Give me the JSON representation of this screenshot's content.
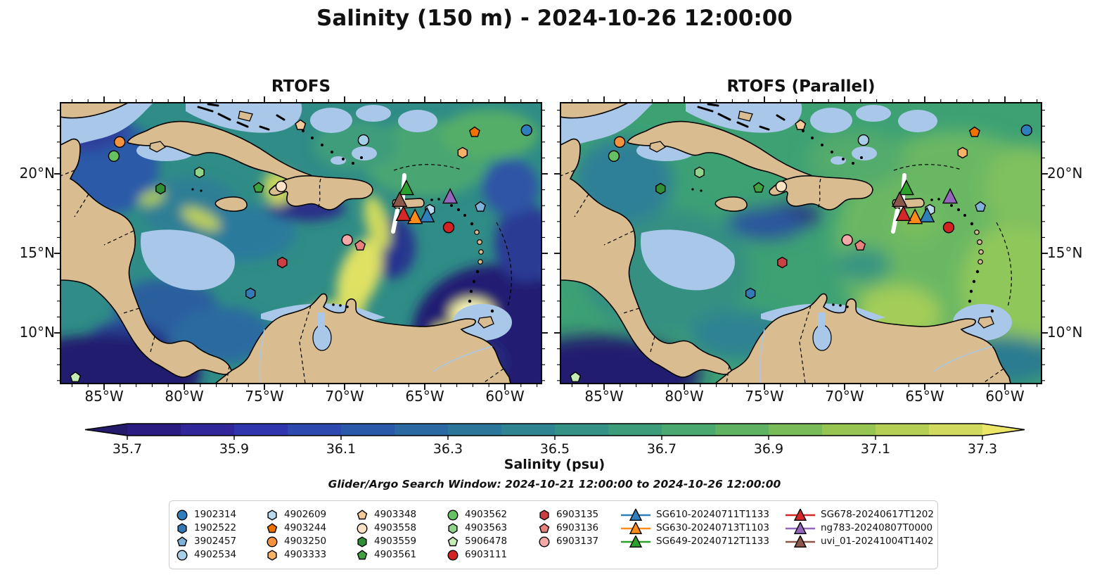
{
  "title": "Salinity (150 m) - 2024-10-26 12:00:00",
  "panels": [
    {
      "title": "RTOFS"
    },
    {
      "title": "RTOFS (Parallel)"
    }
  ],
  "axes": {
    "lon_labels": [
      "85°W",
      "80°W",
      "75°W",
      "70°W",
      "65°W",
      "60°W"
    ],
    "lat_labels": [
      "20°N",
      "15°N",
      "10°N"
    ]
  },
  "colorbar": {
    "label": "Salinity (psu)",
    "ticks": [
      "35.7",
      "35.9",
      "36.1",
      "36.3",
      "36.5",
      "36.7",
      "36.9",
      "37.1",
      "37.3"
    ],
    "under_color": "#241a6b",
    "over_color": "#ece668",
    "segment_colors": [
      "#2a1c80",
      "#30269a",
      "#2f36ad",
      "#2d48ae",
      "#2b59a9",
      "#2a69a2",
      "#2b779a",
      "#2e8491",
      "#349186",
      "#3d9d7a",
      "#4ba86e",
      "#5fb262",
      "#79bb58",
      "#97c551",
      "#b5cf55",
      "#d2d95f"
    ]
  },
  "annotations": {
    "search_window": "Glider/Argo Search Window: 2024-10-21 12:00:00 to 2024-10-26 12:00:00"
  },
  "chart_data": {
    "type": "heatmap",
    "subtype": "filled-contour salinity field comparison, two geographic map panels (Caribbean Sea)",
    "variable": "Salinity (psu)",
    "depth": "150 m",
    "valid_time": "2024-10-26 12:00:00",
    "panel_titles": [
      "RTOFS",
      "RTOFS (Parallel)"
    ],
    "lon_ticks": [
      "85°W",
      "80°W",
      "75°W",
      "70°W",
      "65°W",
      "60°W"
    ],
    "lat_ticks": [
      "20°N",
      "15°N",
      "10°N"
    ],
    "color_levels": {
      "min": 35.7,
      "max": 37.3,
      "step": 0.1,
      "extend": "both"
    },
    "markers": [
      {
        "id": "1902314",
        "kind": "argo",
        "shape": "circle",
        "color": "#2e7ebc",
        "lon_approx": "58.6W",
        "lat_approx": "22.7N",
        "fx": 0.969,
        "fy": 0.098
      },
      {
        "id": "1902522",
        "kind": "argo",
        "shape": "hexagon",
        "color": "#3579b5",
        "lon_approx": "75.9W",
        "lat_approx": "12.5N",
        "fx": 0.395,
        "fy": 0.679
      },
      {
        "id": "3902457",
        "kind": "argo",
        "shape": "pentagon",
        "color": "#7fb2d8",
        "lon_approx": "61.5W",
        "lat_approx": "17.9N",
        "fx": 0.873,
        "fy": 0.371
      },
      {
        "id": "4902534",
        "kind": "argo",
        "shape": "circle",
        "color": "#a8cfe8",
        "lon_approx": "68.8W",
        "lat_approx": "22.1N",
        "fx": 0.63,
        "fy": 0.133
      },
      {
        "id": "4902609",
        "kind": "argo",
        "shape": "hexagon",
        "color": "#b8d9ee",
        "lon_approx": "64.7W",
        "lat_approx": "17.7N",
        "fx": 0.768,
        "fy": 0.381
      },
      {
        "id": "4903244",
        "kind": "argo",
        "shape": "pentagon",
        "color": "#ef7100",
        "lon_approx": "61.9W",
        "lat_approx": "22.6N",
        "fx": 0.861,
        "fy": 0.105
      },
      {
        "id": "4903250",
        "kind": "argo",
        "shape": "circle",
        "color": "#f5923e",
        "lon_approx": "84.0W",
        "lat_approx": "22.0N",
        "fx": 0.123,
        "fy": 0.14
      },
      {
        "id": "4903333",
        "kind": "argo",
        "shape": "hexagon",
        "color": "#f8b267",
        "lon_approx": "62.6W",
        "lat_approx": "21.3N",
        "fx": 0.836,
        "fy": 0.178
      },
      {
        "id": "4903348",
        "kind": "argo",
        "shape": "pentagon",
        "color": "#f6c998",
        "lon_approx": "72.8W",
        "lat_approx": "23.1N",
        "fx": 0.499,
        "fy": 0.08
      },
      {
        "id": "4903558",
        "kind": "argo",
        "shape": "circle",
        "color": "#fce3c4",
        "lon_approx": "74.0W",
        "lat_approx": "19.2N",
        "fx": 0.459,
        "fy": 0.298
      },
      {
        "id": "4903559",
        "kind": "argo",
        "shape": "hexagon",
        "color": "#2f8f35",
        "lon_approx": "81.5W",
        "lat_approx": "19.1N",
        "fx": 0.208,
        "fy": 0.306
      },
      {
        "id": "4903561",
        "kind": "argo",
        "shape": "pentagon",
        "color": "#3fa23f",
        "lon_approx": "75.4W",
        "lat_approx": "19.1N",
        "fx": 0.412,
        "fy": 0.303
      },
      {
        "id": "4903562",
        "kind": "argo",
        "shape": "circle",
        "color": "#66c163",
        "lon_approx": "84.4W",
        "lat_approx": "21.1N",
        "fx": 0.111,
        "fy": 0.19
      },
      {
        "id": "4903563",
        "kind": "argo",
        "shape": "hexagon",
        "color": "#90d48a",
        "lon_approx": "79.0W",
        "lat_approx": "20.1N",
        "fx": 0.289,
        "fy": 0.248
      },
      {
        "id": "5906478",
        "kind": "argo",
        "shape": "pentagon",
        "color": "#c6ecb5",
        "lon_approx": "86.8W",
        "lat_approx": "7.1N",
        "fx": 0.031,
        "fy": 0.978
      },
      {
        "id": "6903111",
        "kind": "argo",
        "shape": "circle",
        "color": "#d42222",
        "lon_approx": "63.5W",
        "lat_approx": "16.6N",
        "fx": 0.807,
        "fy": 0.444
      },
      {
        "id": "6903135",
        "kind": "argo",
        "shape": "hexagon",
        "color": "#cb4042",
        "lon_approx": "73.9W",
        "lat_approx": "14.4N",
        "fx": 0.461,
        "fy": 0.569
      },
      {
        "id": "6903136",
        "kind": "argo",
        "shape": "pentagon",
        "color": "#e8827e",
        "lon_approx": "69.0W",
        "lat_approx": "15.5N",
        "fx": 0.623,
        "fy": 0.509
      },
      {
        "id": "6903137",
        "kind": "argo",
        "shape": "circle",
        "color": "#f4a9a8",
        "lon_approx": "69.8W",
        "lat_approx": "15.8N",
        "fx": 0.596,
        "fy": 0.489
      },
      {
        "id": "SG610-20240711T1133",
        "kind": "glider",
        "shape": "triangle",
        "color": "#2f7fba",
        "lon_approx": "64.9W",
        "lat_approx": "17.3N",
        "fx": 0.762,
        "fy": 0.403
      },
      {
        "id": "SG630-20240713T1103",
        "kind": "glider",
        "shape": "triangle",
        "color": "#ff8c1a",
        "lon_approx": "65.6W",
        "lat_approx": "17.3N",
        "fx": 0.737,
        "fy": 0.409
      },
      {
        "id": "SG649-20240712T1133",
        "kind": "glider",
        "shape": "triangle",
        "color": "#2ca02c",
        "lon_approx": "66.1W",
        "lat_approx": "19.1N",
        "fx": 0.719,
        "fy": 0.306
      },
      {
        "id": "SG678-20240617T1202",
        "kind": "glider",
        "shape": "triangle",
        "color": "#d62728",
        "lon_approx": "66.3W",
        "lat_approx": "17.4N",
        "fx": 0.713,
        "fy": 0.398
      },
      {
        "id": "ng783-20240807T0000",
        "kind": "glider",
        "shape": "triangle",
        "color": "#9467bd",
        "lon_approx": "63.4W",
        "lat_approx": "18.5N",
        "fx": 0.81,
        "fy": 0.336
      },
      {
        "id": "uvi_01-20241004T1402",
        "kind": "glider",
        "shape": "triangle",
        "color": "#8c564b",
        "lon_approx": "66.6W",
        "lat_approx": "18.3N",
        "fx": 0.705,
        "fy": 0.348
      }
    ]
  },
  "legend": {
    "rows": 4,
    "column_sizes": [
      4,
      4,
      4,
      4,
      3,
      3,
      3
    ]
  }
}
